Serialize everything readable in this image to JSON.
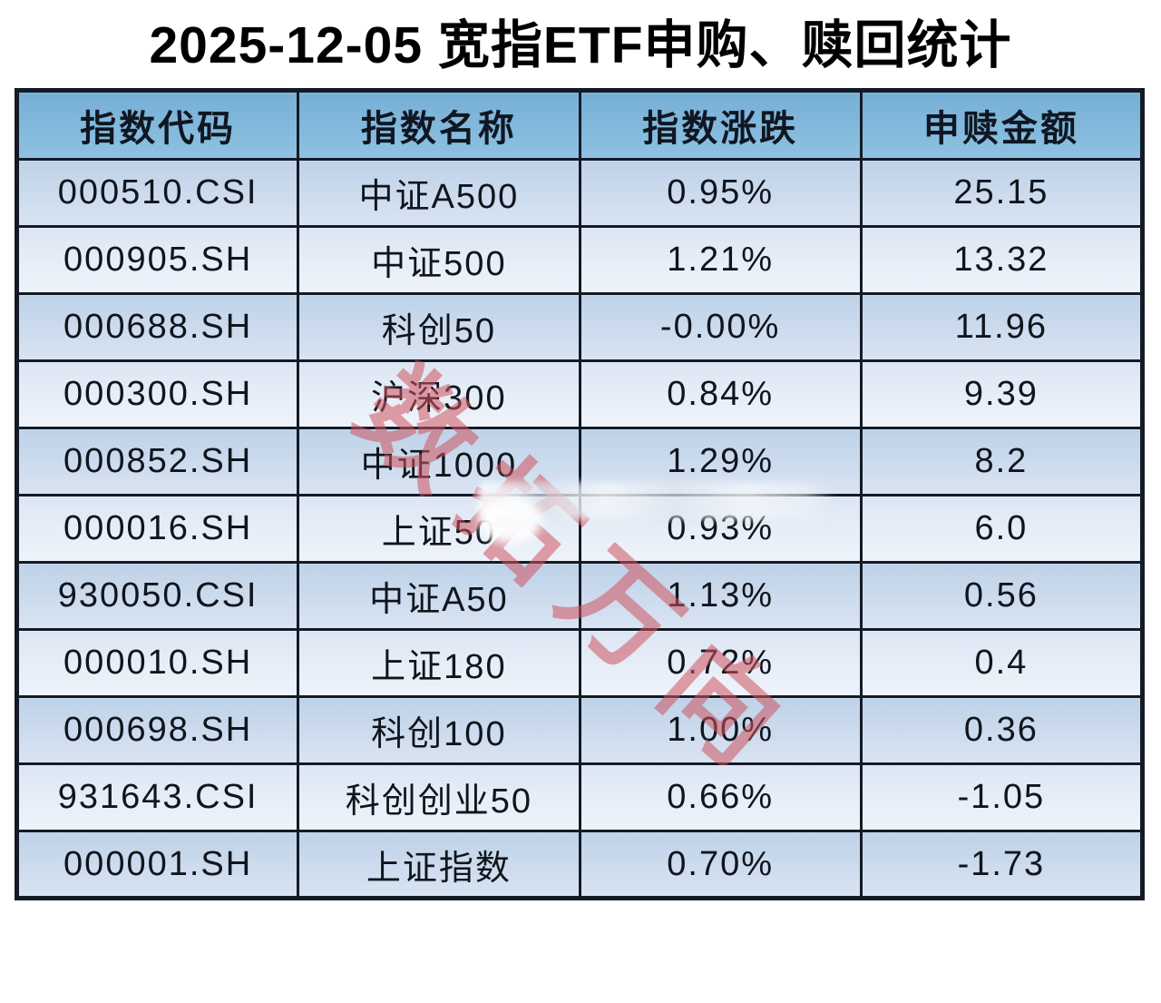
{
  "title": "2025-12-05 宽指ETF申购、赎回统计",
  "watermark": "数拓万向",
  "colors": {
    "header_bg": "#82B8DC",
    "row_dark": "#C8DAEC",
    "row_light": "#E6EDF7",
    "border": "#141B26",
    "watermark_red": "#CF5460",
    "title_text": "#000000"
  },
  "chart_data": {
    "type": "table",
    "title": "2025-12-05 宽指ETF申购、赎回统计",
    "columns": [
      "指数代码",
      "指数名称",
      "指数涨跌",
      "申赎金额"
    ],
    "rows": [
      [
        "000510.CSI",
        "中证A500",
        "0.95%",
        "25.15"
      ],
      [
        "000905.SH",
        "中证500",
        "1.21%",
        "13.32"
      ],
      [
        "000688.SH",
        "科创50",
        "-0.00%",
        "11.96"
      ],
      [
        "000300.SH",
        "沪深300",
        "0.84%",
        "9.39"
      ],
      [
        "000852.SH",
        "中证1000",
        "1.29%",
        "8.2"
      ],
      [
        "000016.SH",
        "上证50",
        "0.93%",
        "6.0"
      ],
      [
        "930050.CSI",
        "中证A50",
        "1.13%",
        "0.56"
      ],
      [
        "000010.SH",
        "上证180",
        "0.72%",
        "0.4"
      ],
      [
        "000698.SH",
        "科创100",
        "1.00%",
        "0.36"
      ],
      [
        "931643.CSI",
        "科创创业50",
        "0.66%",
        "-1.05"
      ],
      [
        "000001.SH",
        "上证指数",
        "0.70%",
        "-1.73"
      ]
    ],
    "layout": {
      "row_shading": "alternating, first data row dark",
      "grid": "on",
      "alignment": "center"
    }
  }
}
